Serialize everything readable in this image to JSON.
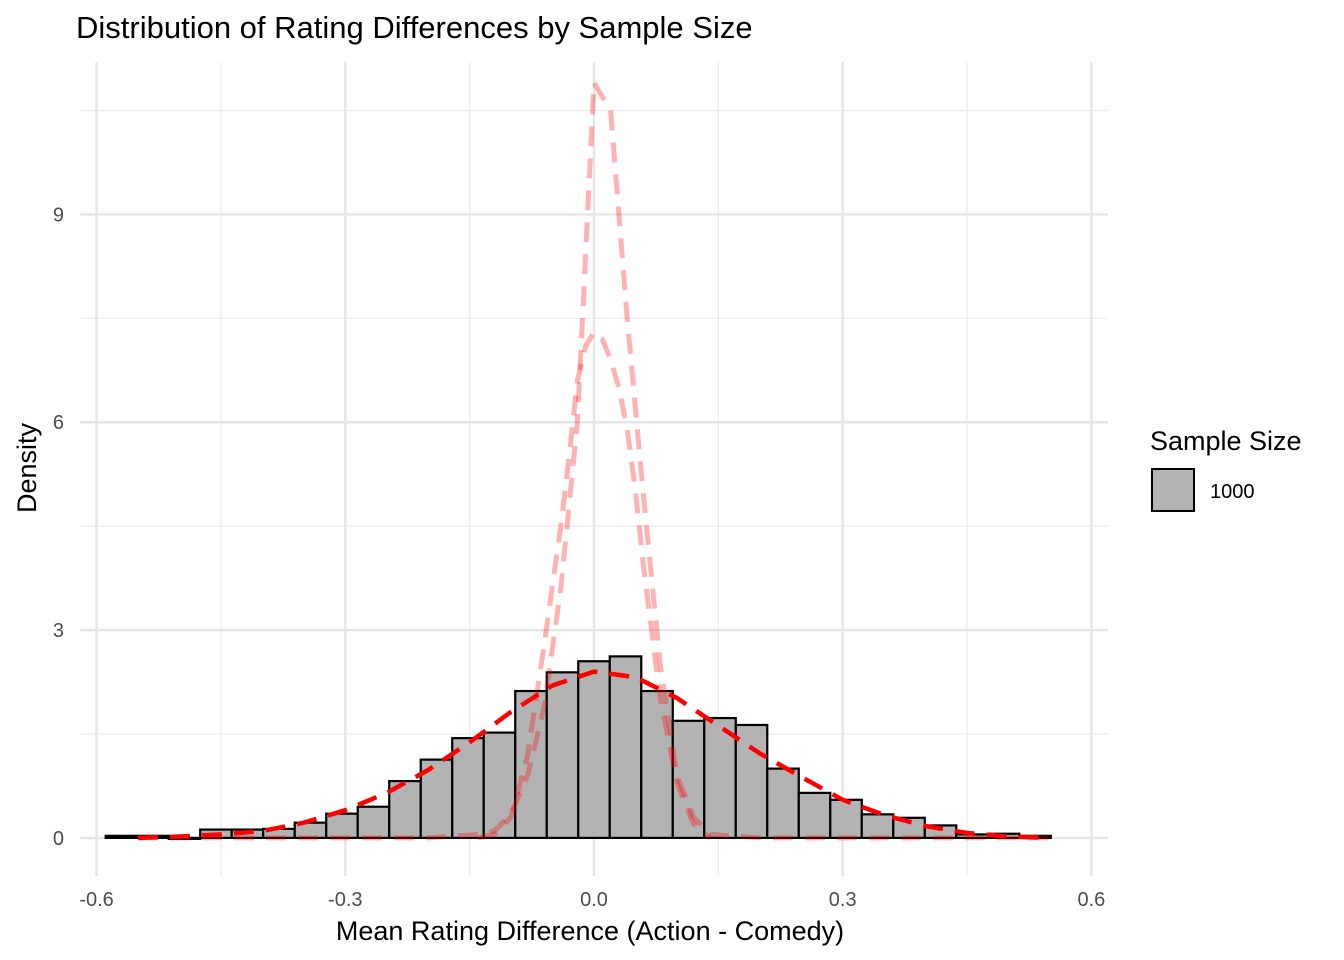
{
  "chart_data": {
    "type": "bar",
    "title": "Distribution of Rating Differences by Sample Size",
    "xlabel": "Mean Rating Difference (Action - Comedy)",
    "ylabel": "Density",
    "xlim": [
      -0.62,
      0.62
    ],
    "ylim": [
      -0.55,
      11.2
    ],
    "x_ticks": [
      -0.6,
      -0.3,
      0.0,
      0.3,
      0.6
    ],
    "x_tick_labels": [
      "-0.6",
      "-0.3",
      "0.0",
      "0.3",
      "0.6"
    ],
    "y_ticks": [
      0,
      3,
      6,
      9
    ],
    "y_tick_labels": [
      "0",
      "3",
      "6",
      "9"
    ],
    "grid": true,
    "legend": {
      "title": "Sample Size",
      "position": "right",
      "entries": [
        {
          "label": "1000",
          "fill": "#b3b3b3"
        }
      ]
    },
    "histogram": {
      "name": "1000",
      "bin_width": 0.038,
      "bin_centers": [
        -0.57,
        -0.532,
        -0.494,
        -0.456,
        -0.418,
        -0.38,
        -0.342,
        -0.304,
        -0.266,
        -0.228,
        -0.19,
        -0.152,
        -0.114,
        -0.076,
        -0.038,
        0.0,
        0.038,
        0.076,
        0.114,
        0.152,
        0.19,
        0.228,
        0.266,
        0.304,
        0.342,
        0.38,
        0.418,
        0.456,
        0.494,
        0.532
      ],
      "density": [
        0.03,
        0.03,
        0.0,
        0.12,
        0.12,
        0.13,
        0.22,
        0.35,
        0.45,
        0.82,
        1.13,
        1.44,
        1.52,
        2.12,
        2.39,
        2.55,
        2.62,
        2.12,
        1.69,
        1.73,
        1.63,
        1.0,
        0.65,
        0.55,
        0.34,
        0.29,
        0.18,
        0.05,
        0.06,
        0.03
      ],
      "fill": "#b3b3b3",
      "stroke": "#000000"
    },
    "density_curves": [
      {
        "role": "main",
        "color": "#ff0000",
        "opacity": 1,
        "x": [
          -0.55,
          -0.5,
          -0.45,
          -0.4,
          -0.35,
          -0.3,
          -0.25,
          -0.2,
          -0.15,
          -0.1,
          -0.05,
          0.0,
          0.05,
          0.1,
          0.15,
          0.2,
          0.25,
          0.3,
          0.35,
          0.4,
          0.45,
          0.5,
          0.55
        ],
        "y": [
          0.0,
          0.02,
          0.05,
          0.1,
          0.22,
          0.4,
          0.65,
          0.98,
          1.38,
          1.82,
          2.2,
          2.4,
          2.32,
          2.02,
          1.62,
          1.22,
          0.88,
          0.55,
          0.33,
          0.17,
          0.07,
          0.02,
          0.0
        ]
      },
      {
        "role": "faded",
        "color": "#ff0000",
        "opacity": 0.3,
        "x": [
          -0.14,
          -0.12,
          -0.1,
          -0.08,
          -0.06,
          -0.04,
          -0.03,
          -0.02,
          -0.01,
          0.0,
          0.01,
          0.02,
          0.03,
          0.04,
          0.05,
          0.06,
          0.08,
          0.1,
          0.12,
          0.14
        ],
        "y": [
          0.0,
          0.05,
          0.3,
          1.2,
          2.8,
          4.5,
          5.5,
          6.6,
          7.1,
          7.3,
          7.2,
          6.9,
          6.5,
          5.9,
          5.0,
          3.9,
          2.0,
          0.8,
          0.2,
          0.0
        ]
      },
      {
        "role": "faded",
        "color": "#ff0000",
        "opacity": 0.3,
        "x": [
          -0.55,
          -0.5,
          -0.4,
          -0.3,
          -0.2,
          -0.14,
          -0.12,
          -0.1,
          -0.08,
          -0.06,
          -0.04,
          -0.02,
          0.0,
          0.02,
          0.04,
          0.06,
          0.08,
          0.1,
          0.12,
          0.14,
          0.2,
          0.3,
          0.4,
          0.5,
          0.55
        ],
        "y": [
          0.0,
          0.0,
          0.0,
          0.0,
          0.0,
          0.05,
          0.1,
          0.35,
          0.9,
          1.9,
          3.6,
          6.0,
          10.9,
          10.5,
          7.5,
          4.9,
          2.5,
          0.9,
          0.3,
          0.05,
          0.0,
          0.0,
          0.0,
          0.0,
          0.0
        ]
      }
    ]
  }
}
